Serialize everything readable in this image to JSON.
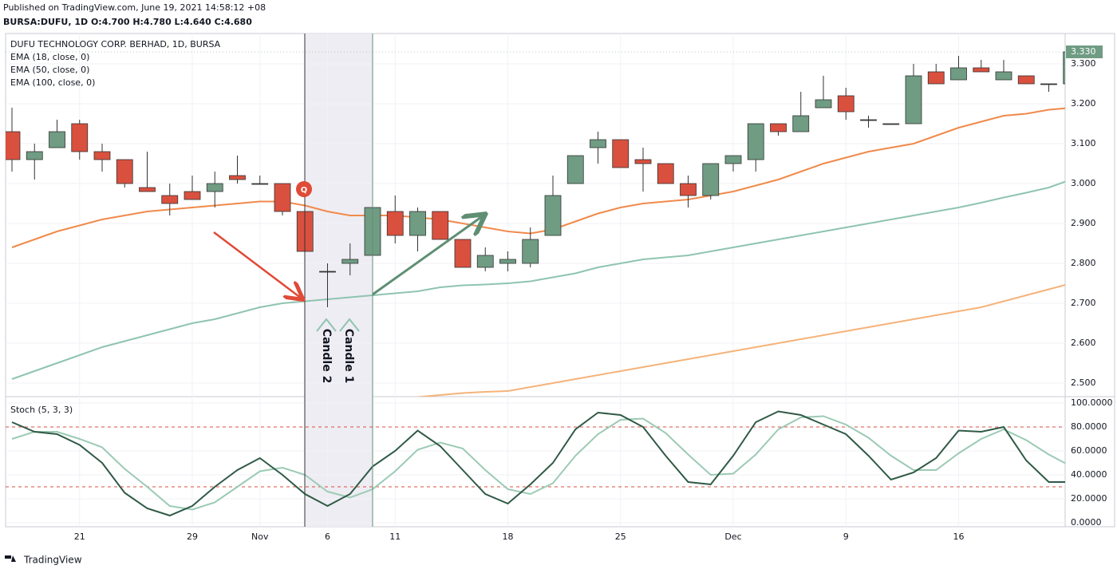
{
  "header": {
    "published": "Published on TradingView.com, June 19, 2021 14:58:12 +08",
    "quote": "BURSA:DUFU, 1D O:4.700 H:4.780 L:4.640 C:4.680"
  },
  "footer": {
    "brand": "TradingView"
  },
  "chart_data": {
    "type": "candlestick",
    "title": "DUFU TECHNOLOGY CORP. BERHAD, 1D, BURSA",
    "categories": [
      null,
      null,
      null,
      "21",
      null,
      null,
      null,
      null,
      "29",
      null,
      null,
      "Nov",
      null,
      null,
      "6",
      null,
      null,
      "11",
      null,
      null,
      null,
      null,
      "18",
      null,
      null,
      null,
      null,
      "25",
      null,
      null,
      null,
      null,
      "Dec",
      null,
      null,
      null,
      null,
      "9",
      null,
      null,
      null,
      null,
      "16",
      null,
      null,
      null,
      null,
      null
    ],
    "ohlc": {
      "up_color": "#6f9c83",
      "down_color": "#d9503f",
      "open": [
        3.13,
        3.06,
        3.09,
        3.15,
        3.08,
        3.06,
        2.99,
        2.97,
        2.98,
        2.98,
        3.02,
        3.0,
        3.0,
        2.93,
        2.78,
        2.8,
        2.82,
        2.93,
        2.87,
        2.93,
        2.86,
        2.79,
        2.8,
        2.8,
        2.87,
        3.0,
        3.09,
        3.11,
        3.06,
        3.05,
        3.0,
        2.97,
        3.05,
        3.06,
        3.15,
        3.13,
        3.19,
        3.22,
        3.16,
        3.15,
        3.15,
        3.28,
        3.26,
        3.29,
        3.26,
        3.27,
        3.25,
        3.25
      ],
      "high": [
        3.19,
        3.1,
        3.16,
        3.16,
        3.1,
        3.06,
        3.08,
        3.0,
        3.02,
        3.03,
        3.07,
        3.02,
        3.0,
        2.93,
        2.8,
        2.85,
        2.94,
        2.97,
        2.94,
        2.93,
        2.86,
        2.84,
        2.83,
        2.89,
        3.02,
        3.07,
        3.13,
        3.11,
        3.09,
        3.05,
        3.02,
        3.05,
        3.07,
        3.15,
        3.15,
        3.23,
        3.27,
        3.24,
        3.17,
        3.15,
        3.3,
        3.3,
        3.32,
        3.31,
        3.31,
        3.27,
        3.25,
        3.33
      ],
      "low": [
        3.03,
        3.01,
        3.09,
        3.06,
        3.03,
        2.99,
        2.98,
        2.92,
        2.96,
        2.94,
        3.0,
        3.0,
        2.92,
        2.83,
        2.69,
        2.77,
        2.82,
        2.85,
        2.83,
        2.86,
        2.79,
        2.78,
        2.78,
        2.79,
        2.87,
        3.0,
        3.05,
        3.04,
        2.98,
        3.0,
        2.94,
        2.96,
        3.03,
        3.03,
        3.12,
        3.13,
        3.19,
        3.16,
        3.14,
        3.15,
        3.15,
        3.25,
        3.26,
        3.28,
        3.26,
        3.25,
        3.23,
        3.25
      ],
      "close": [
        3.06,
        3.08,
        3.13,
        3.08,
        3.06,
        3.0,
        2.98,
        2.95,
        2.96,
        3.0,
        3.01,
        3.0,
        2.93,
        2.83,
        2.78,
        2.81,
        2.94,
        2.87,
        2.93,
        2.86,
        2.79,
        2.82,
        2.81,
        2.86,
        2.97,
        3.07,
        3.11,
        3.04,
        3.05,
        3.0,
        2.97,
        3.05,
        3.07,
        3.15,
        3.13,
        3.17,
        3.21,
        3.18,
        3.16,
        3.15,
        3.27,
        3.25,
        3.29,
        3.28,
        3.28,
        3.25,
        3.25,
        3.33
      ]
    },
    "series": [
      {
        "name": "EMA (18, close, 0)",
        "color": "#f08a4b",
        "values": [
          2.84,
          2.86,
          2.88,
          2.895,
          2.91,
          2.92,
          2.93,
          2.935,
          2.94,
          2.945,
          2.95,
          2.955,
          2.955,
          2.945,
          2.93,
          2.92,
          2.92,
          2.92,
          2.915,
          2.91,
          2.9,
          2.89,
          2.88,
          2.875,
          2.885,
          2.905,
          2.925,
          2.94,
          2.95,
          2.955,
          2.96,
          2.97,
          2.98,
          2.995,
          3.01,
          3.03,
          3.05,
          3.065,
          3.08,
          3.09,
          3.1,
          3.12,
          3.14,
          3.155,
          3.17,
          3.175,
          3.185,
          3.19
        ]
      },
      {
        "name": "EMA (50, close, 0)",
        "color": "#8fc4b0",
        "values": [
          2.51,
          2.53,
          2.55,
          2.57,
          2.59,
          2.605,
          2.62,
          2.635,
          2.65,
          2.66,
          2.675,
          2.69,
          2.7,
          2.705,
          2.71,
          2.715,
          2.72,
          2.725,
          2.73,
          2.74,
          2.745,
          2.747,
          2.75,
          2.755,
          2.765,
          2.775,
          2.79,
          2.8,
          2.81,
          2.815,
          2.82,
          2.83,
          2.84,
          2.85,
          2.86,
          2.87,
          2.88,
          2.89,
          2.9,
          2.91,
          2.92,
          2.93,
          2.94,
          2.952,
          2.965,
          2.977,
          2.99,
          3.01
        ]
      },
      {
        "name": "EMA (100, close, 0)",
        "color": "#f5b37a",
        "values": [
          null,
          null,
          null,
          null,
          null,
          null,
          null,
          null,
          null,
          null,
          null,
          null,
          null,
          null,
          null,
          null,
          null,
          null,
          2.465,
          2.47,
          2.475,
          2.478,
          2.48,
          2.49,
          2.5,
          2.51,
          2.52,
          2.53,
          2.54,
          2.55,
          2.56,
          2.57,
          2.58,
          2.59,
          2.6,
          2.61,
          2.62,
          2.63,
          2.64,
          2.65,
          2.66,
          2.67,
          2.68,
          2.69,
          2.705,
          2.72,
          2.735,
          2.75
        ]
      }
    ],
    "ylim": [
      2.466,
      3.376
    ],
    "yticks": [
      {
        "value": 2.5,
        "label": "2.500"
      },
      {
        "value": 2.6,
        "label": "2.600"
      },
      {
        "value": 2.7,
        "label": "2.700"
      },
      {
        "value": 2.8,
        "label": "2.800"
      },
      {
        "value": 2.9,
        "label": "2.900"
      },
      {
        "value": 3.0,
        "label": "3.000"
      },
      {
        "value": 3.1,
        "label": "3.100"
      },
      {
        "value": 3.2,
        "label": "3.200"
      },
      {
        "value": 3.3,
        "label": "3.300"
      }
    ],
    "last_price": {
      "value": 3.33,
      "label": "3.330"
    },
    "grid": true,
    "annotations": {
      "marker": "Q",
      "candle_a": "Candle 2",
      "candle_b": "Candle 1"
    },
    "stoch": {
      "title": "Stoch (5, 3, 3)",
      "series": [
        {
          "color": "#2f5a45",
          "values": [
            84,
            76,
            74,
            65,
            50,
            25,
            12,
            6,
            14,
            30,
            44,
            54,
            40,
            24,
            14,
            24,
            47,
            60,
            77,
            64,
            44,
            24,
            16,
            32,
            50,
            78,
            92,
            90,
            80,
            56,
            34,
            32,
            56,
            84,
            93,
            90,
            82,
            74,
            56,
            36,
            42,
            54,
            77,
            76,
            80,
            52,
            34,
            34
          ]
        },
        {
          "color": "#9ccab4",
          "values": [
            70,
            76,
            76,
            70,
            63,
            45,
            30,
            14,
            11,
            17,
            30,
            43,
            46,
            40,
            26,
            21,
            28,
            43,
            61,
            67,
            62,
            44,
            28,
            24,
            33,
            56,
            74,
            86,
            87,
            75,
            57,
            40,
            41,
            57,
            78,
            88,
            89,
            82,
            71,
            56,
            44,
            44,
            58,
            70,
            78,
            69,
            57,
            47
          ]
        }
      ],
      "bands": [
        80,
        30
      ],
      "band_color": "#d9503f",
      "ylim": [
        -3.333,
        103.333
      ],
      "yticks": [
        {
          "value": 0,
          "label": "0.0000"
        },
        {
          "value": 20,
          "label": "20.0000"
        },
        {
          "value": 40,
          "label": "40.0000"
        },
        {
          "value": 60,
          "label": "60.0000"
        },
        {
          "value": 80,
          "label": "80.0000"
        },
        {
          "value": 100,
          "label": "100.0000"
        }
      ]
    }
  }
}
